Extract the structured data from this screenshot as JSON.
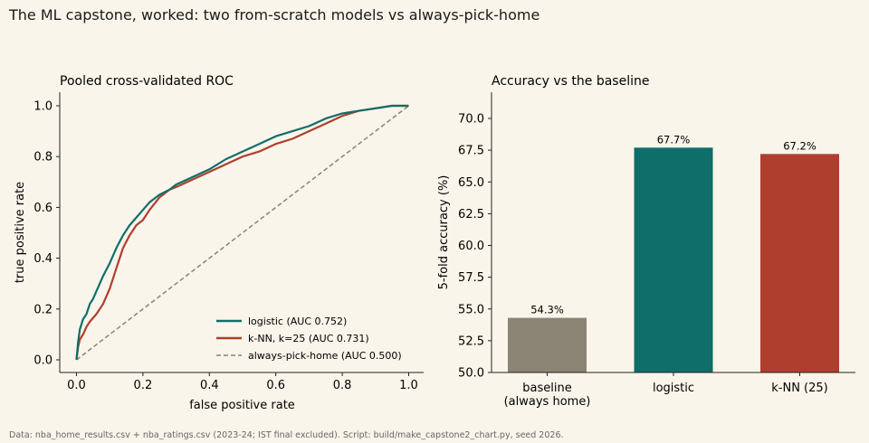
{
  "figure": {
    "title": "The ML capstone, worked: two from-scratch models vs always-pick-home",
    "caption": "Data: nba_home_results.csv + nba_ratings.csv (2023-24; IST final excluded). Script: build/make_capstone2_chart.py, seed 2026."
  },
  "colors": {
    "logistic": "#0f6e69",
    "knn": "#b03e2e",
    "baseline": "#8b8474",
    "background": "#f9f5ea"
  },
  "chart_data": [
    {
      "type": "line",
      "title": "Pooled cross-validated ROC",
      "xlabel": "false positive rate",
      "ylabel": "true positive rate",
      "xlim": [
        0,
        1
      ],
      "ylim": [
        0,
        1
      ],
      "xticks": [
        "0.0",
        "0.2",
        "0.4",
        "0.6",
        "0.8",
        "1.0"
      ],
      "yticks": [
        "0.0",
        "0.2",
        "0.4",
        "0.6",
        "0.8",
        "1.0"
      ],
      "grid": false,
      "legend_position": "lower-right",
      "series": [
        {
          "name": "logistic (AUC 0.752)",
          "color": "#0f6e69",
          "style": "solid",
          "x": [
            0,
            0.005,
            0.01,
            0.02,
            0.03,
            0.04,
            0.05,
            0.06,
            0.08,
            0.1,
            0.12,
            0.14,
            0.16,
            0.18,
            0.2,
            0.22,
            0.25,
            0.28,
            0.3,
            0.35,
            0.4,
            0.45,
            0.5,
            0.55,
            0.6,
            0.65,
            0.7,
            0.75,
            0.8,
            0.85,
            0.9,
            0.95,
            1.0
          ],
          "y": [
            0,
            0.07,
            0.12,
            0.16,
            0.18,
            0.22,
            0.24,
            0.27,
            0.33,
            0.38,
            0.44,
            0.49,
            0.53,
            0.56,
            0.59,
            0.62,
            0.65,
            0.67,
            0.69,
            0.72,
            0.75,
            0.79,
            0.82,
            0.85,
            0.88,
            0.9,
            0.92,
            0.95,
            0.97,
            0.98,
            0.99,
            1.0,
            1.0
          ]
        },
        {
          "name": "k-NN, k=25 (AUC 0.731)",
          "color": "#b03e2e",
          "style": "solid",
          "x": [
            0,
            0.005,
            0.01,
            0.02,
            0.03,
            0.04,
            0.06,
            0.08,
            0.1,
            0.12,
            0.14,
            0.16,
            0.18,
            0.2,
            0.22,
            0.25,
            0.28,
            0.3,
            0.35,
            0.4,
            0.45,
            0.5,
            0.55,
            0.6,
            0.65,
            0.7,
            0.75,
            0.8,
            0.85,
            0.9,
            0.95,
            1.0
          ],
          "y": [
            0,
            0.05,
            0.08,
            0.1,
            0.13,
            0.15,
            0.18,
            0.22,
            0.28,
            0.36,
            0.44,
            0.49,
            0.53,
            0.55,
            0.59,
            0.64,
            0.67,
            0.68,
            0.71,
            0.74,
            0.77,
            0.8,
            0.82,
            0.85,
            0.87,
            0.9,
            0.93,
            0.96,
            0.98,
            0.99,
            1.0,
            1.0
          ]
        },
        {
          "name": "always-pick-home (AUC 0.500)",
          "color": "#8b8474",
          "style": "dashed",
          "x": [
            0,
            1
          ],
          "y": [
            0,
            1
          ]
        }
      ]
    },
    {
      "type": "bar",
      "title": "Accuracy vs the baseline",
      "ylabel": "5-fold accuracy (%)",
      "categories": [
        [
          "baseline",
          "(always home)"
        ],
        [
          "logistic"
        ],
        [
          "k-NN (25)"
        ]
      ],
      "values": [
        54.3,
        67.7,
        67.2
      ],
      "value_labels": [
        "54.3%",
        "67.7%",
        "67.2%"
      ],
      "bar_colors": [
        "#8b8474",
        "#0f6e69",
        "#b03e2e"
      ],
      "ylim": [
        50,
        72
      ],
      "yticks": [
        "50.0",
        "52.5",
        "55.0",
        "57.5",
        "60.0",
        "62.5",
        "65.0",
        "67.5",
        "70.0"
      ],
      "grid": false
    }
  ]
}
